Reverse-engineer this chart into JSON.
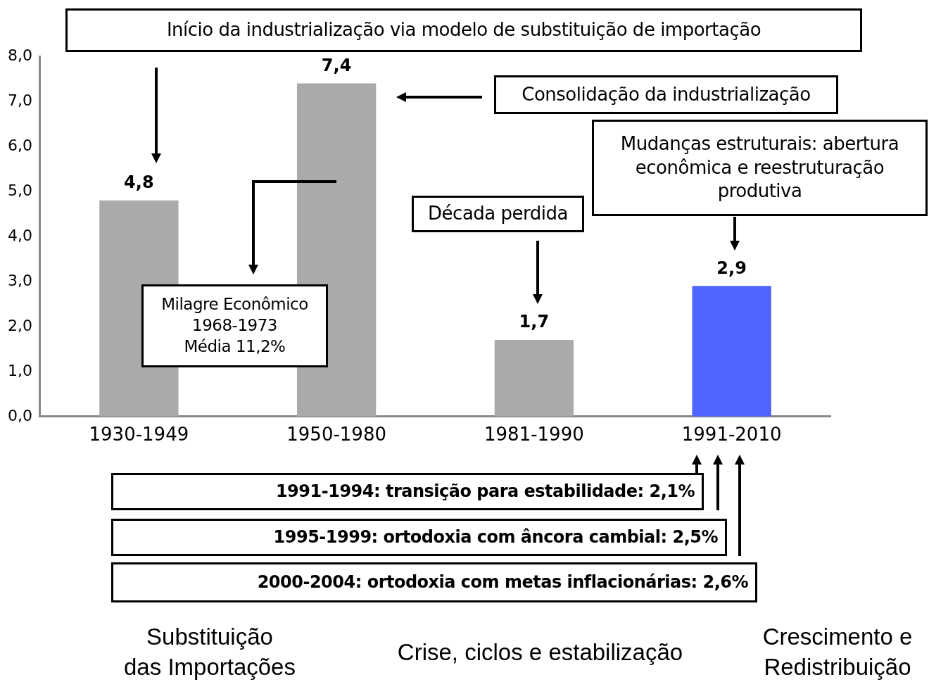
{
  "chart_data": {
    "type": "bar",
    "categories": [
      "1930-1949",
      "1950-1980",
      "1981-1990",
      "1991-2010"
    ],
    "values": [
      4.8,
      7.4,
      1.7,
      2.9
    ],
    "colors": [
      "#aaaaaa",
      "#aaaaaa",
      "#aaaaaa",
      "#5064ff"
    ],
    "value_labels": [
      "4,8",
      "7,4",
      "1,7",
      "2,9"
    ],
    "ylim": [
      0,
      8
    ],
    "yticks": [
      {
        "value": 0,
        "label": "0,0"
      },
      {
        "value": 1,
        "label": "1,0"
      },
      {
        "value": 2,
        "label": "2,0"
      },
      {
        "value": 3,
        "label": "3,0"
      },
      {
        "value": 4,
        "label": "4,0"
      },
      {
        "value": 5,
        "label": "5,0"
      },
      {
        "value": 6,
        "label": "6,0"
      },
      {
        "value": 7,
        "label": "7,0"
      },
      {
        "value": 8,
        "label": "8,0"
      }
    ],
    "grid": false,
    "legend": false,
    "annotations": [
      "Início da industrialização via modelo de substituição de importação",
      "Consolidação da industrialização",
      "Mudanças estruturais: abertura econômica e reestruturação produtiva",
      "Década perdida",
      "Milagre Econômico\n1968-1973\nMédia 11,2%",
      "1991-1994: transição para estabilidade: 2,1%",
      "1995-1999: ortodoxia com âncora cambial: 2,5%",
      "2000-2004: ortodoxia com metas inflacionárias: 2,6%",
      "Substituição\ndas Importações",
      "Crise, ciclos e estabilização",
      "Crescimento e\nRedistribuição"
    ]
  }
}
